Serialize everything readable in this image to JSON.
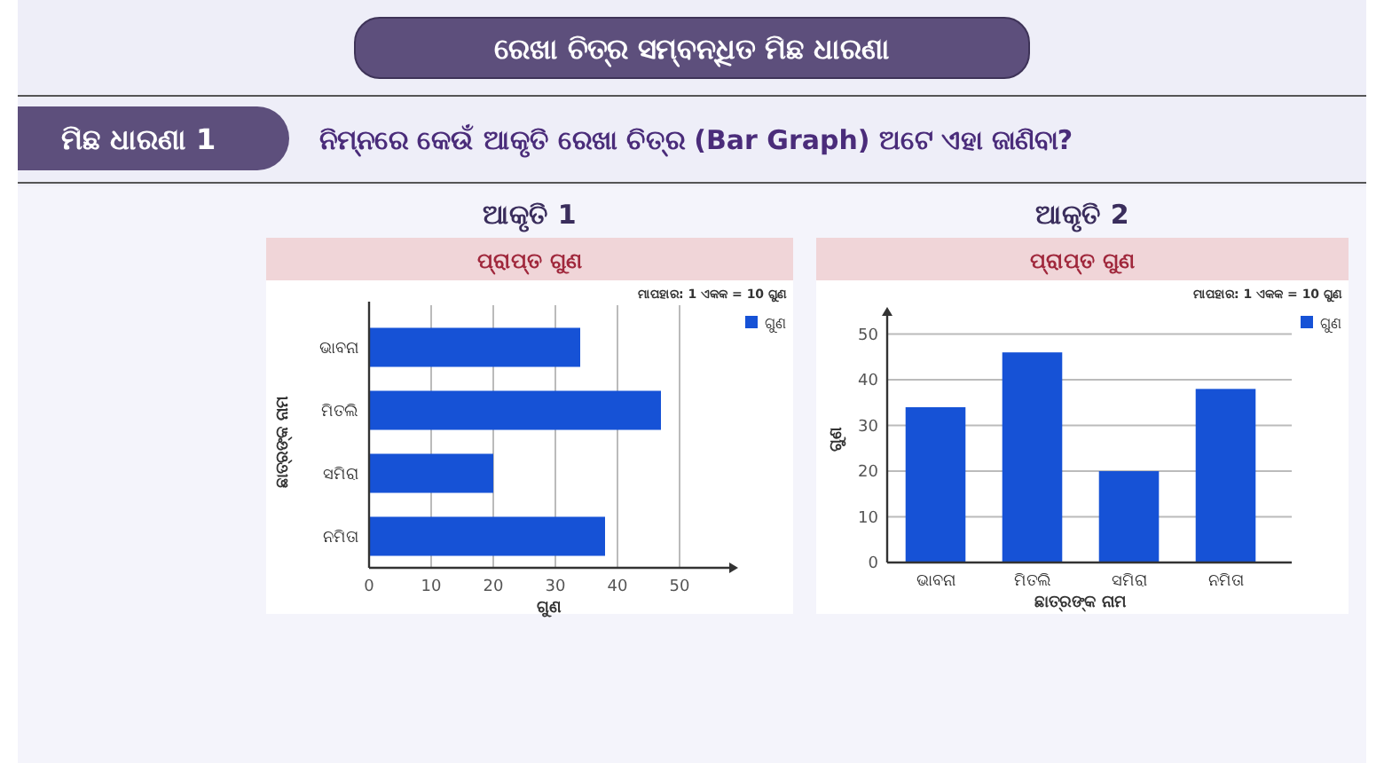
{
  "chart_data": [
    {
      "type": "other",
      "title": "ରେଖା ଚିତ୍ର ସମ୍ବନ୍ଧିତ ମିଛ ଧାରଣା",
      "annotations": [
        "ମିଛ ଧାରଣା 1",
        "ନିମ୍ନରେ କେଉଁ ଆକୃତି ରେଖା ଚିତ୍ର (Bar Graph) ଅଟେ ଏହା ଜାଣିବା?"
      ]
    },
    {
      "type": "bar",
      "orientation": "horizontal",
      "title": "ଆକୃତି 1",
      "subtitle": "ପ୍ରାପ୍ତ ଗୁଣ",
      "annotations": [
        "ମାପହାର: 1 ଏକକ = 10 ଗୁଣ"
      ],
      "xlabel": "ଗୁଣ",
      "ylabel": "ଛାତ୍ରଙ୍କ ନାମ",
      "categories": [
        "ଭାବନା",
        "ମିତଲି",
        "ସମିରା",
        "ନମିତା"
      ],
      "series": [
        {
          "name": "ଗୁଣ",
          "color": "#1652d6",
          "values": [
            34,
            47,
            20,
            38
          ]
        }
      ],
      "xlim": [
        0,
        58
      ],
      "xticks": [
        0,
        10,
        20,
        30,
        40,
        50
      ],
      "grid": "x",
      "legend": "top right"
    },
    {
      "type": "bar",
      "title": "ଆକୃତି 2",
      "subtitle": "ପ୍ରାପ୍ତ ଗୁଣ",
      "annotations": [
        "ମାପହାର: 1 ଏକକ = 10 ଗୁଣ"
      ],
      "xlabel": "ଛାତ୍ରଙ୍କ ନାମ",
      "ylabel": "ଗୁଣ",
      "categories": [
        "ଭାବନା",
        "ମିତଲି",
        "ସମିରା",
        "ନମିତା"
      ],
      "series": [
        {
          "name": "ଗୁଣ",
          "color": "#1652d6",
          "values": [
            34,
            46,
            20,
            38
          ]
        }
      ],
      "ylim": [
        0,
        54
      ],
      "yticks": [
        0,
        10,
        20,
        30,
        40,
        50
      ],
      "grid": "y",
      "legend": "top right"
    }
  ]
}
